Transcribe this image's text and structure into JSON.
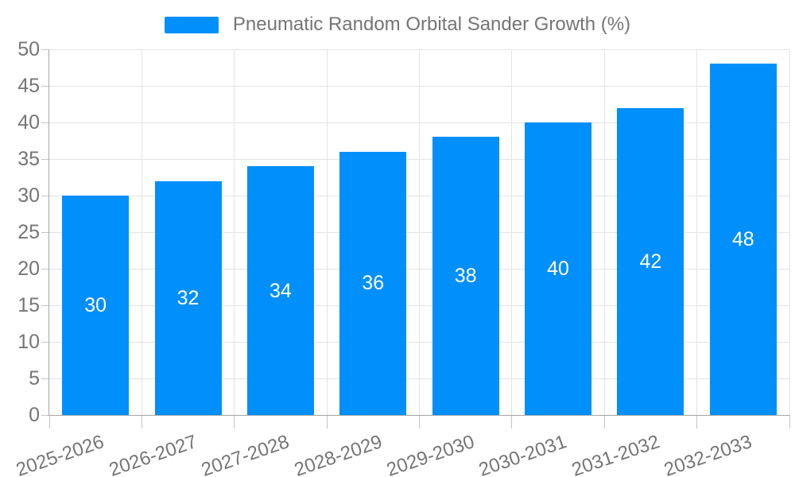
{
  "chart_data": {
    "type": "bar",
    "title": "",
    "xlabel": "",
    "ylabel": "",
    "categories": [
      "2025-2026",
      "2026-2027",
      "2027-2028",
      "2028-2029",
      "2029-2030",
      "2030-2031",
      "2031-2032",
      "2032-2033"
    ],
    "series": [
      {
        "name": "Pneumatic Random Orbital Sander Growth (%)",
        "values": [
          30,
          32,
          34,
          36,
          38,
          40,
          42,
          48
        ]
      }
    ],
    "ylim": [
      0,
      50
    ],
    "yticks": [
      0,
      5,
      10,
      15,
      20,
      25,
      30,
      35,
      40,
      45,
      50
    ],
    "grid": true,
    "legend_position": "top",
    "value_labels_position": "inside-center",
    "colors": {
      "bar": "#008FFB",
      "value_label": "#ffffff",
      "axis_text": "#757575",
      "grid": "#e3e3e3",
      "axis_line": "#a6a6a6",
      "tick": "#c4c4c4",
      "background": "#ffffff"
    }
  }
}
